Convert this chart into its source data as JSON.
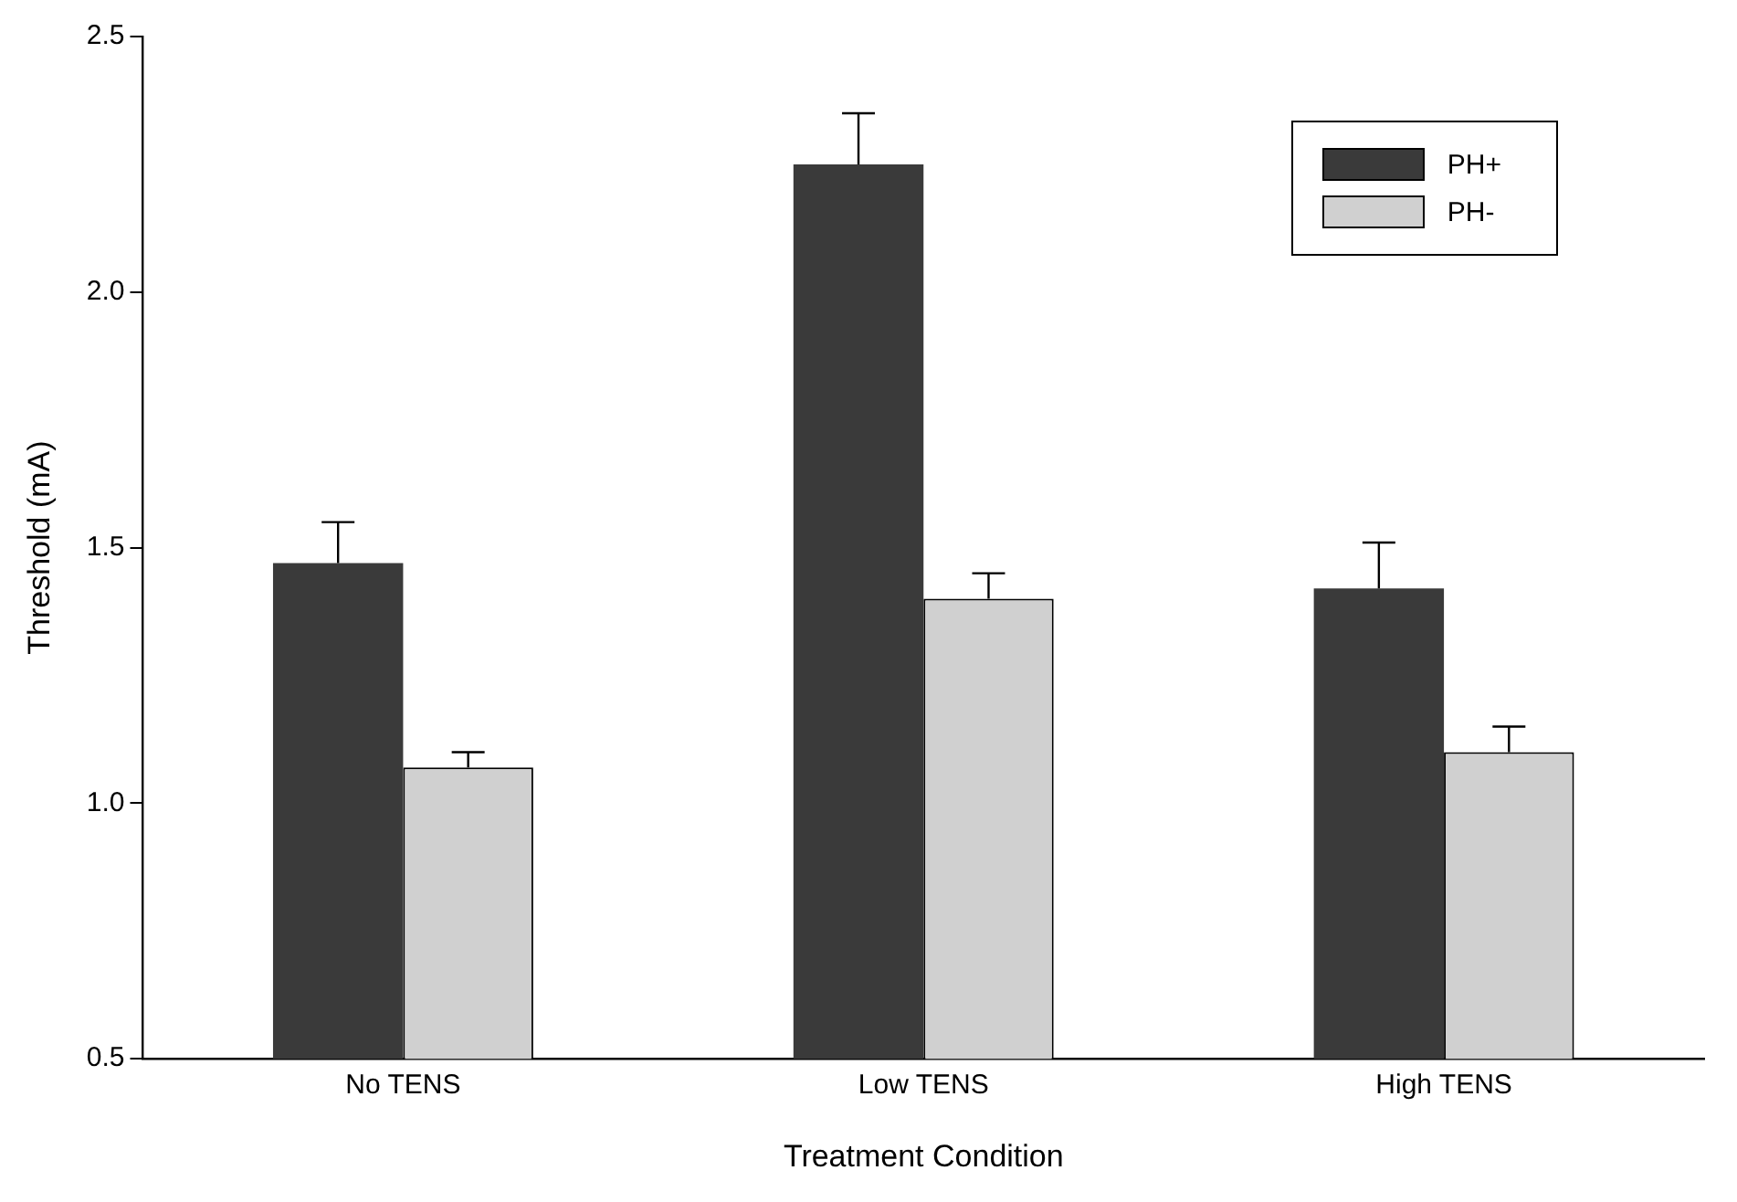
{
  "chart_data": {
    "type": "bar",
    "xlabel": "Treatment Condition",
    "ylabel": "Threshold (mA)",
    "categories": [
      "No TENS",
      "Low TENS",
      "High TENS"
    ],
    "series": [
      {
        "name": "PH+",
        "color": "#3a3a3a",
        "values": [
          1.47,
          2.25,
          1.42
        ],
        "errors": [
          [
            1.47,
            1.55
          ],
          [
            2.25,
            2.35
          ],
          [
            1.42,
            1.51
          ]
        ]
      },
      {
        "name": "PH-",
        "color": "#d0d0d0",
        "values": [
          1.07,
          1.4,
          1.1
        ],
        "errors": [
          [
            1.07,
            1.1
          ],
          [
            1.4,
            1.45
          ],
          [
            1.1,
            1.15
          ]
        ]
      }
    ],
    "ylim": [
      0.5,
      2.5
    ],
    "yticks": [
      0.5,
      {
        "value": 1,
        "label": "1.0"
      },
      1.5,
      {
        "value": 2,
        "label": "2.0"
      },
      2.5
    ],
    "grid": false,
    "legend": "top right"
  }
}
